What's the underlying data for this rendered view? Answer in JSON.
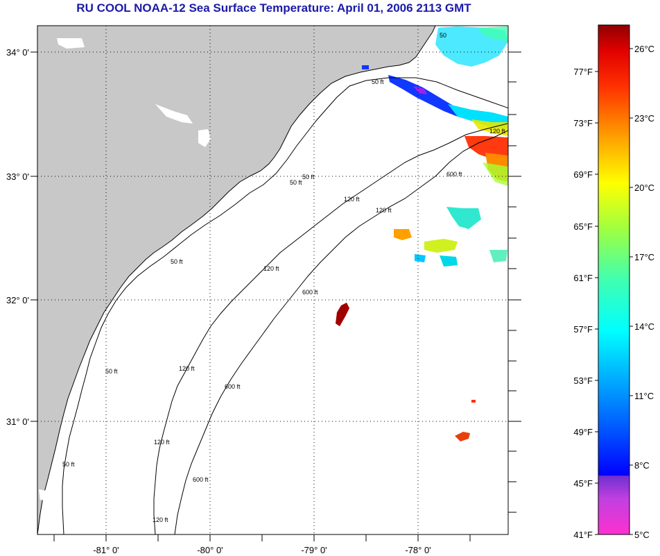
{
  "title": "RU COOL  NOAA-12  Sea Surface Temperature:  April 01, 2006 2113 GMT",
  "map": {
    "lon_labels": [
      "-81° 0'",
      "-80° 0'",
      "-79° 0'",
      "-78° 0'"
    ],
    "lat_labels": [
      "34° 0'",
      "33° 0'",
      "32° 0'",
      "31° 0'"
    ],
    "contour_labels": [
      "50 ft",
      "50 ft",
      "50 ft",
      "50 ft",
      "50 ft",
      "50 ft",
      "120 ft",
      "120 ft",
      "120 ft",
      "120 ft",
      "120 ft",
      "120 ft",
      "120 ft",
      "600 ft",
      "600 ft",
      "600 ft",
      "600 ft",
      "50"
    ]
  },
  "colorbar": {
    "fahrenheit_labels": [
      "77°F",
      "73°F",
      "69°F",
      "65°F",
      "61°F",
      "57°F",
      "53°F",
      "49°F",
      "45°F",
      "41°F"
    ],
    "celsius_labels": [
      "26°C",
      "23°C",
      "20°C",
      "17°C",
      "14°C",
      "11°C",
      "8°C",
      "5°C"
    ]
  },
  "colors": {
    "land": "#c8c8c8",
    "ocean": "#ffffff",
    "title": "#1a1aa8",
    "warm": "#e8200c",
    "hot": "#a00000",
    "cool": "#00c8ff",
    "cold": "#1038ff"
  }
}
